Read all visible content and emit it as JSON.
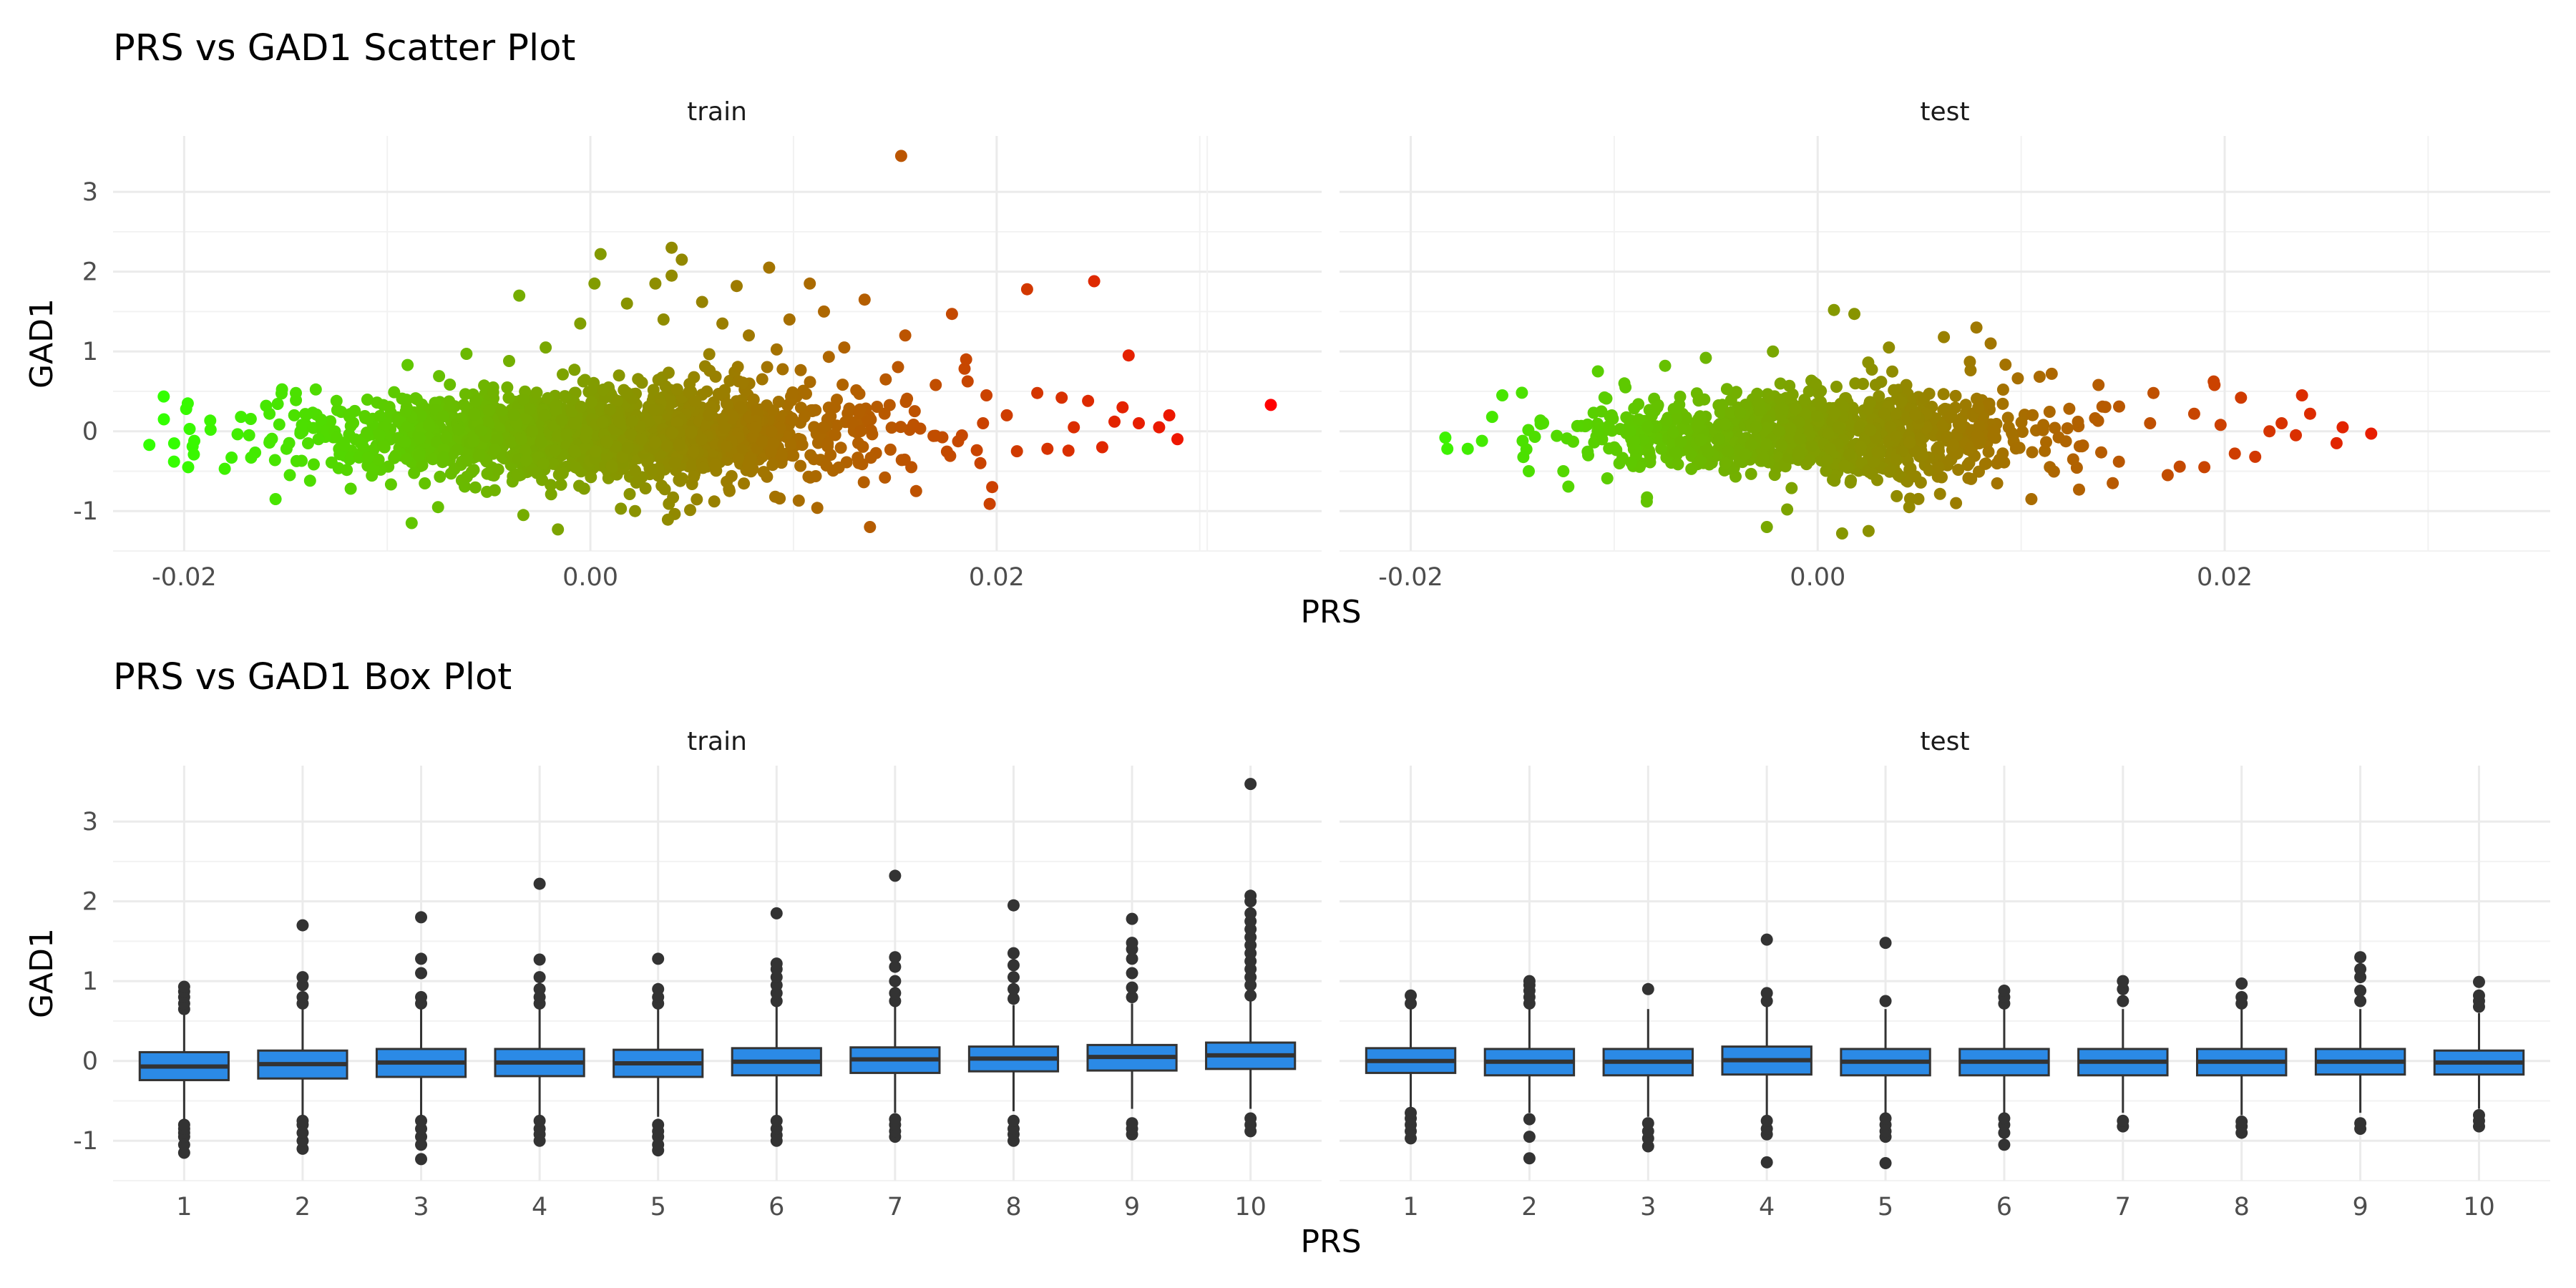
{
  "chart_data": [
    {
      "type": "scatter",
      "title": "PRS vs GAD1 Scatter Plot",
      "xlabel": "PRS",
      "ylabel": "GAD1",
      "xlim": [
        -0.0235,
        0.036
      ],
      "ylim": [
        -1.5,
        3.7
      ],
      "x_ticks": [
        "-0.02",
        "0.00",
        "0.02"
      ],
      "x_tick_values": [
        -0.02,
        0.0,
        0.02
      ],
      "y_ticks": [
        "-1",
        "0",
        "1",
        "2",
        "3"
      ],
      "y_tick_values": [
        -1,
        0,
        1,
        2,
        3
      ],
      "grid": true,
      "color_gradient": [
        "#33ff00",
        "#ff0000"
      ],
      "panels": [
        {
          "name": "train",
          "cloud": {
            "x_center": 0.0,
            "x_sd": 0.0068,
            "y_center": -0.03,
            "y_sd": 0.32,
            "n": 1700
          },
          "points": [
            [
              -0.021,
              0.15
            ],
            [
              -0.0205,
              -0.38
            ],
            [
              -0.0199,
              0.28
            ],
            [
              -0.0198,
              -0.45
            ],
            [
              -0.0195,
              -0.12
            ],
            [
              -0.0187,
              0.02
            ],
            [
              -0.018,
              -0.47
            ],
            [
              -0.0172,
              0.18
            ],
            [
              -0.0168,
              -0.05
            ],
            [
              -0.0167,
              -0.33
            ],
            [
              -0.0158,
              0.22
            ],
            [
              -0.0155,
              -0.85
            ],
            [
              -0.0148,
              -0.55
            ],
            [
              -0.0145,
              0.48
            ],
            [
              -0.0142,
              0.08
            ],
            [
              -0.0138,
              -0.62
            ],
            [
              -0.0125,
              0.38
            ],
            [
              -0.0118,
              -0.72
            ],
            [
              -0.0088,
              -1.15
            ],
            [
              -0.009,
              0.83
            ],
            [
              -0.0075,
              -0.95
            ],
            [
              -0.0061,
              0.97
            ],
            [
              -0.004,
              0.88
            ],
            [
              -0.0035,
              1.7
            ],
            [
              -0.0033,
              -1.05
            ],
            [
              -0.0022,
              1.05
            ],
            [
              -0.0016,
              -1.23
            ],
            [
              -0.0005,
              1.35
            ],
            [
              0.0002,
              1.85
            ],
            [
              0.0005,
              2.22
            ],
            [
              0.0015,
              -0.97
            ],
            [
              0.0018,
              1.6
            ],
            [
              0.0022,
              -1.0
            ],
            [
              0.0032,
              1.85
            ],
            [
              0.0036,
              1.4
            ],
            [
              0.004,
              1.95
            ],
            [
              0.004,
              2.3
            ],
            [
              0.0045,
              2.15
            ],
            [
              0.0055,
              1.62
            ],
            [
              0.0061,
              -0.88
            ],
            [
              0.0065,
              1.35
            ],
            [
              0.0072,
              1.82
            ],
            [
              0.0078,
              1.2
            ],
            [
              0.0088,
              2.05
            ],
            [
              0.0091,
              -0.82
            ],
            [
              0.0098,
              1.4
            ],
            [
              0.0108,
              1.85
            ],
            [
              0.0115,
              1.5
            ],
            [
              0.0125,
              1.05
            ],
            [
              0.0135,
              1.65
            ],
            [
              0.0145,
              -0.58
            ],
            [
              0.0153,
              3.45
            ],
            [
              0.0155,
              1.2
            ],
            [
              0.0158,
              -0.45
            ],
            [
              0.017,
              0.58
            ],
            [
              0.0178,
              1.47
            ],
            [
              0.0185,
              0.9
            ],
            [
              0.0192,
              -0.4
            ],
            [
              0.0195,
              0.45
            ],
            [
              0.0205,
              0.2
            ],
            [
              0.021,
              -0.25
            ],
            [
              0.0215,
              1.78
            ],
            [
              0.022,
              0.48
            ],
            [
              0.0225,
              -0.22
            ],
            [
              0.0232,
              0.42
            ],
            [
              0.0238,
              0.05
            ],
            [
              0.0245,
              0.38
            ],
            [
              0.0248,
              1.88
            ],
            [
              0.0252,
              -0.2
            ],
            [
              0.0258,
              0.12
            ],
            [
              0.0262,
              0.3
            ],
            [
              0.0265,
              0.95
            ],
            [
              0.027,
              0.1
            ],
            [
              0.028,
              0.05
            ],
            [
              0.0285,
              0.2
            ],
            [
              0.0289,
              -0.1
            ],
            [
              0.0335,
              0.33
            ]
          ]
        },
        {
          "name": "test",
          "cloud": {
            "x_center": 0.0,
            "x_sd": 0.0058,
            "y_center": -0.03,
            "y_sd": 0.29,
            "n": 1000
          },
          "points": [
            [
              -0.0183,
              -0.08
            ],
            [
              -0.0182,
              -0.22
            ],
            [
              -0.0172,
              -0.22
            ],
            [
              -0.0165,
              -0.12
            ],
            [
              -0.016,
              0.18
            ],
            [
              -0.0155,
              0.45
            ],
            [
              -0.0145,
              -0.12
            ],
            [
              -0.0142,
              -0.5
            ],
            [
              -0.0135,
              0.1
            ],
            [
              -0.0125,
              -0.5
            ],
            [
              -0.0108,
              0.75
            ],
            [
              -0.0095,
              0.6
            ],
            [
              -0.0075,
              0.82
            ],
            [
              -0.0055,
              0.92
            ],
            [
              -0.0025,
              -1.2
            ],
            [
              -0.0022,
              1.0
            ],
            [
              -0.0015,
              -0.98
            ],
            [
              0.0008,
              1.52
            ],
            [
              0.0012,
              -1.28
            ],
            [
              0.0018,
              1.47
            ],
            [
              0.0025,
              -1.25
            ],
            [
              0.0035,
              1.05
            ],
            [
              0.0045,
              -0.95
            ],
            [
              0.0062,
              1.18
            ],
            [
              0.0068,
              -0.9
            ],
            [
              0.0078,
              1.3
            ],
            [
              0.0085,
              1.1
            ],
            [
              0.0105,
              -0.85
            ],
            [
              0.0115,
              0.72
            ],
            [
              0.0138,
              0.58
            ],
            [
              0.0145,
              -0.65
            ],
            [
              0.0165,
              0.48
            ],
            [
              0.0172,
              -0.55
            ],
            [
              0.0185,
              0.22
            ],
            [
              0.019,
              -0.45
            ],
            [
              0.0195,
              0.58
            ],
            [
              0.0198,
              0.08
            ],
            [
              0.0205,
              -0.28
            ],
            [
              0.0208,
              0.42
            ],
            [
              0.0215,
              -0.32
            ],
            [
              0.0222,
              0.0
            ],
            [
              0.0228,
              0.1
            ],
            [
              0.0235,
              -0.05
            ],
            [
              0.0238,
              0.45
            ],
            [
              0.0242,
              0.22
            ],
            [
              0.0255,
              -0.15
            ],
            [
              0.0258,
              0.05
            ],
            [
              0.0272,
              -0.03
            ]
          ]
        }
      ]
    },
    {
      "type": "box",
      "title": "PRS vs GAD1 Box Plot",
      "xlabel": "PRS",
      "ylabel": "GAD1",
      "categories": [
        "1",
        "2",
        "3",
        "4",
        "5",
        "6",
        "7",
        "8",
        "9",
        "10"
      ],
      "ylim": [
        -1.5,
        3.7
      ],
      "y_ticks": [
        "-1",
        "0",
        "1",
        "2",
        "3"
      ],
      "y_tick_values": [
        -1,
        0,
        1,
        2,
        3
      ],
      "grid": true,
      "box_color": "#2b8ae6",
      "panels": [
        {
          "name": "train",
          "boxes": [
            {
              "q1": -0.24,
              "median": -0.07,
              "q3": 0.11,
              "whisker_low": -0.75,
              "whisker_high": 0.6,
              "outliers": [
                -1.15,
                -1.05,
                -0.95,
                -0.9,
                -0.85,
                -0.8,
                0.65,
                0.72,
                0.8,
                0.87,
                0.93
              ]
            },
            {
              "q1": -0.22,
              "median": -0.04,
              "q3": 0.13,
              "whisker_low": -0.7,
              "whisker_high": 0.65,
              "outliers": [
                -1.1,
                -1.0,
                -0.9,
                -0.8,
                -0.75,
                0.72,
                0.8,
                0.95,
                1.05,
                1.7
              ]
            },
            {
              "q1": -0.2,
              "median": -0.02,
              "q3": 0.15,
              "whisker_low": -0.7,
              "whisker_high": 0.65,
              "outliers": [
                -1.23,
                -1.05,
                -0.95,
                -0.85,
                -0.75,
                0.72,
                0.8,
                1.1,
                1.28,
                1.8
              ]
            },
            {
              "q1": -0.19,
              "median": -0.02,
              "q3": 0.15,
              "whisker_low": -0.7,
              "whisker_high": 0.65,
              "outliers": [
                -1.0,
                -0.92,
                -0.85,
                -0.75,
                0.72,
                0.8,
                0.9,
                1.05,
                1.27,
                2.22
              ]
            },
            {
              "q1": -0.2,
              "median": -0.03,
              "q3": 0.14,
              "whisker_low": -0.7,
              "whisker_high": 0.65,
              "outliers": [
                -1.12,
                -1.05,
                -0.95,
                -0.88,
                -0.8,
                0.72,
                0.8,
                0.9,
                1.28
              ]
            },
            {
              "q1": -0.18,
              "median": -0.01,
              "q3": 0.16,
              "whisker_low": -0.68,
              "whisker_high": 0.68,
              "outliers": [
                -1.0,
                -0.93,
                -0.85,
                -0.75,
                0.75,
                0.85,
                0.95,
                1.05,
                1.15,
                1.22,
                1.85
              ]
            },
            {
              "q1": -0.15,
              "median": 0.02,
              "q3": 0.17,
              "whisker_low": -0.65,
              "whisker_high": 0.7,
              "outliers": [
                -0.95,
                -0.88,
                -0.8,
                -0.73,
                0.75,
                0.85,
                1.0,
                1.18,
                1.3,
                2.32
              ]
            },
            {
              "q1": -0.13,
              "median": 0.03,
              "q3": 0.18,
              "whisker_low": -0.63,
              "whisker_high": 0.7,
              "outliers": [
                -1.0,
                -0.92,
                -0.85,
                -0.75,
                0.78,
                0.9,
                1.05,
                1.2,
                1.35,
                1.95
              ]
            },
            {
              "q1": -0.12,
              "median": 0.05,
              "q3": 0.2,
              "whisker_low": -0.6,
              "whisker_high": 0.72,
              "outliers": [
                -0.92,
                -0.85,
                -0.78,
                0.8,
                0.92,
                1.1,
                1.28,
                1.4,
                1.48,
                1.78
              ]
            },
            {
              "q1": -0.1,
              "median": 0.07,
              "q3": 0.23,
              "whisker_low": -0.6,
              "whisker_high": 0.75,
              "outliers": [
                -0.88,
                -0.8,
                -0.72,
                0.82,
                0.95,
                1.05,
                1.15,
                1.25,
                1.35,
                1.45,
                1.55,
                1.65,
                1.75,
                1.85,
                2.0,
                2.07,
                3.47
              ]
            }
          ]
        },
        {
          "name": "test",
          "boxes": [
            {
              "q1": -0.15,
              "median": 0.0,
              "q3": 0.16,
              "whisker_low": -0.6,
              "whisker_high": 0.65,
              "outliers": [
                -0.97,
                -0.88,
                -0.8,
                -0.72,
                -0.65,
                0.72,
                0.82
              ]
            },
            {
              "q1": -0.18,
              "median": -0.01,
              "q3": 0.15,
              "whisker_low": -0.65,
              "whisker_high": 0.65,
              "outliers": [
                -1.22,
                -0.95,
                -0.73,
                0.72,
                0.8,
                0.88,
                0.95,
                1.0
              ]
            },
            {
              "q1": -0.18,
              "median": -0.01,
              "q3": 0.15,
              "whisker_low": -0.7,
              "whisker_high": 0.65,
              "outliers": [
                -1.07,
                -0.97,
                -0.88,
                -0.78,
                0.9
              ]
            },
            {
              "q1": -0.17,
              "median": 0.01,
              "q3": 0.18,
              "whisker_low": -0.7,
              "whisker_high": 0.68,
              "outliers": [
                -1.27,
                -0.92,
                -0.85,
                -0.75,
                0.75,
                0.85,
                1.52
              ]
            },
            {
              "q1": -0.18,
              "median": -0.01,
              "q3": 0.15,
              "whisker_low": -0.65,
              "whisker_high": 0.65,
              "outliers": [
                -1.28,
                -0.95,
                -0.88,
                -0.8,
                -0.72,
                0.75,
                1.48
              ]
            },
            {
              "q1": -0.18,
              "median": -0.01,
              "q3": 0.15,
              "whisker_low": -0.65,
              "whisker_high": 0.65,
              "outliers": [
                -1.05,
                -0.9,
                -0.8,
                -0.72,
                0.72,
                0.8,
                0.88
              ]
            },
            {
              "q1": -0.18,
              "median": -0.01,
              "q3": 0.15,
              "whisker_low": -0.65,
              "whisker_high": 0.65,
              "outliers": [
                -0.82,
                -0.75,
                0.75,
                0.9,
                1.0
              ]
            },
            {
              "q1": -0.18,
              "median": -0.01,
              "q3": 0.15,
              "whisker_low": -0.68,
              "whisker_high": 0.65,
              "outliers": [
                -0.9,
                -0.82,
                -0.76,
                0.72,
                0.8,
                0.97
              ]
            },
            {
              "q1": -0.17,
              "median": -0.01,
              "q3": 0.15,
              "whisker_low": -0.65,
              "whisker_high": 0.65,
              "outliers": [
                -0.85,
                -0.78,
                0.75,
                0.88,
                1.05,
                1.15,
                1.3
              ]
            },
            {
              "q1": -0.17,
              "median": -0.02,
              "q3": 0.13,
              "whisker_low": -0.6,
              "whisker_high": 0.6,
              "outliers": [
                -0.82,
                -0.75,
                -0.68,
                0.68,
                0.75,
                0.82,
                0.99
              ]
            }
          ]
        }
      ]
    }
  ]
}
